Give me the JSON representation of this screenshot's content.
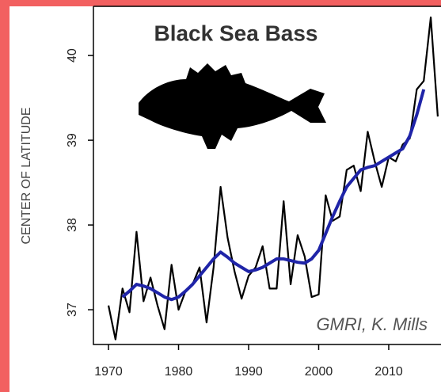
{
  "chart_data": {
    "type": "line",
    "title": "Black Sea Bass",
    "ylabel": "CENTER OF LATITUDE",
    "annotation": "GMRI, K. Mills",
    "x": [
      1970,
      1971,
      1972,
      1973,
      1974,
      1975,
      1976,
      1977,
      1978,
      1979,
      1980,
      1981,
      1982,
      1983,
      1984,
      1985,
      1986,
      1987,
      1988,
      1989,
      1990,
      1991,
      1992,
      1993,
      1994,
      1995,
      1996,
      1997,
      1998,
      1999,
      2000,
      2001,
      2002,
      2003,
      2004,
      2005,
      2006,
      2007,
      2008,
      2009,
      2010,
      2011,
      2012,
      2013,
      2014,
      2015,
      2016,
      2017
    ],
    "series": [
      {
        "color": "#000000",
        "values": [
          37.05,
          36.65,
          37.25,
          36.97,
          37.92,
          37.1,
          37.38,
          37.05,
          36.77,
          37.53,
          37.0,
          37.22,
          37.3,
          37.5,
          36.85,
          37.5,
          38.45,
          37.85,
          37.45,
          37.13,
          37.4,
          37.5,
          37.75,
          37.25,
          37.25,
          38.28,
          37.3,
          37.88,
          37.63,
          37.15,
          37.18,
          38.35,
          38.05,
          38.1,
          38.65,
          38.7,
          38.4,
          39.1,
          38.75,
          38.45,
          38.8,
          38.75,
          38.95,
          39.02,
          39.6,
          39.7,
          40.45,
          39.28
        ]
      },
      {
        "color": "#1f24a8",
        "values": [
          null,
          null,
          37.15,
          37.22,
          37.3,
          37.28,
          37.25,
          37.2,
          37.15,
          37.12,
          37.15,
          37.22,
          37.3,
          37.4,
          37.5,
          37.6,
          37.68,
          37.62,
          37.55,
          37.5,
          37.45,
          37.47,
          37.5,
          37.55,
          37.6,
          37.6,
          37.58,
          37.56,
          37.55,
          37.6,
          37.7,
          37.9,
          38.1,
          38.28,
          38.45,
          38.55,
          38.65,
          38.68,
          38.7,
          38.75,
          38.8,
          38.85,
          38.9,
          39.05,
          39.3,
          39.6,
          null,
          null
        ]
      }
    ],
    "xlim": [
      1967.85,
      2017.46
    ],
    "ylim": [
      36.59,
      40.58
    ],
    "xticks": [
      1970,
      1980,
      1990,
      2000,
      2010
    ],
    "yticks": [
      37,
      38,
      39,
      40
    ]
  }
}
